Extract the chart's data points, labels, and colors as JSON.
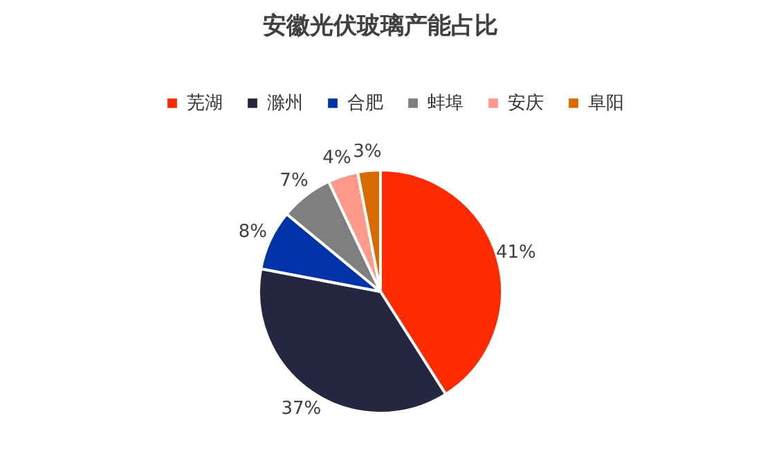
{
  "chart_data": {
    "type": "pie",
    "title": "安徽光伏玻璃产能占比",
    "categories": [
      "芜湖",
      "滁州",
      "合肥",
      "蚌埠",
      "安庆",
      "阜阳"
    ],
    "values": [
      41,
      37,
      8,
      7,
      4,
      3
    ],
    "colors": [
      "#ff2a00",
      "#262640",
      "#0033a8",
      "#7f7f7f",
      "#ff9a8a",
      "#d96a00"
    ],
    "value_labels": [
      "41%",
      "37%",
      "8%",
      "7%",
      "4%",
      "3%"
    ],
    "legend": "top"
  }
}
